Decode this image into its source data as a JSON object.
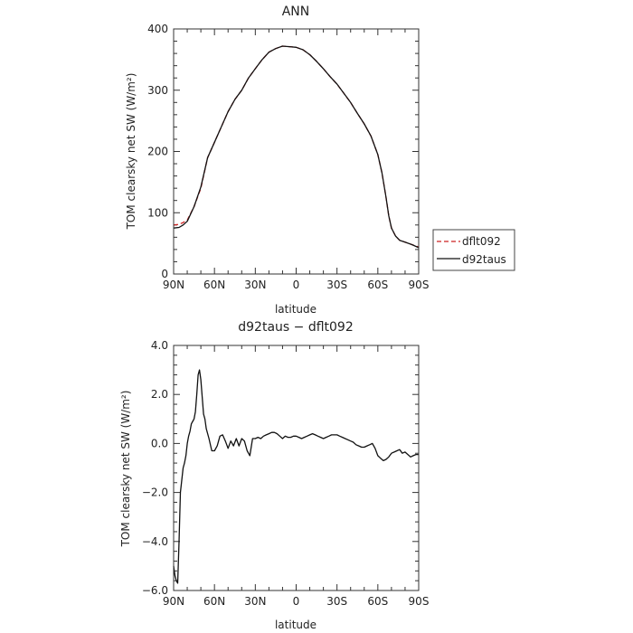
{
  "chart_data": [
    {
      "type": "line",
      "title": "ANN",
      "xlabel": "latitude",
      "ylabel": "TOM clearsky net SW (W/m²)",
      "xlim": [
        90,
        -90
      ],
      "ylim": [
        0,
        400
      ],
      "x_ticks": [
        {
          "value": 90,
          "label": "90N"
        },
        {
          "value": 60,
          "label": "60N"
        },
        {
          "value": 30,
          "label": "30N"
        },
        {
          "value": 0,
          "label": "0"
        },
        {
          "value": -30,
          "label": "30S"
        },
        {
          "value": -60,
          "label": "60S"
        },
        {
          "value": -90,
          "label": "90S"
        }
      ],
      "y_ticks": [
        {
          "value": 0,
          "label": "0"
        },
        {
          "value": 100,
          "label": "100"
        },
        {
          "value": 200,
          "label": "200"
        },
        {
          "value": 300,
          "label": "300"
        },
        {
          "value": 400,
          "label": "400"
        }
      ],
      "legend_position": "right",
      "series": [
        {
          "name": "dflt092",
          "color": "#cc2222",
          "dash": "dashed",
          "x": [
            90,
            86,
            83,
            80,
            75,
            70,
            65,
            60,
            55,
            50,
            45,
            40,
            35,
            30,
            25,
            20,
            15,
            10,
            5,
            0,
            -5,
            -10,
            -15,
            -20,
            -25,
            -30,
            -35,
            -40,
            -45,
            -50,
            -55,
            -60,
            -63,
            -66,
            -68,
            -70,
            -73,
            -76,
            -80,
            -85,
            -90
          ],
          "values": [
            80,
            81,
            84,
            88,
            110,
            140,
            190,
            215,
            240,
            265,
            285,
            300,
            320,
            335,
            350,
            362,
            368,
            372,
            371,
            370,
            366,
            358,
            347,
            335,
            322,
            310,
            295,
            280,
            262,
            245,
            225,
            195,
            165,
            125,
            95,
            75,
            62,
            55,
            52,
            48,
            44
          ]
        },
        {
          "name": "d92taus",
          "color": "#111111",
          "dash": "solid",
          "x": [
            90,
            86,
            83,
            80,
            75,
            70,
            65,
            60,
            55,
            50,
            45,
            40,
            35,
            30,
            25,
            20,
            15,
            10,
            5,
            0,
            -5,
            -10,
            -15,
            -20,
            -25,
            -30,
            -35,
            -40,
            -45,
            -50,
            -55,
            -60,
            -63,
            -66,
            -68,
            -70,
            -73,
            -76,
            -80,
            -85,
            -90
          ],
          "values": [
            75,
            76,
            80,
            86,
            110,
            142,
            190,
            215,
            240,
            265,
            285,
            300,
            320,
            335,
            350,
            362,
            368,
            372,
            371,
            370,
            366,
            358,
            347,
            335,
            322,
            310,
            295,
            280,
            262,
            245,
            225,
            195,
            165,
            125,
            95,
            75,
            62,
            55,
            52,
            48,
            43
          ]
        }
      ]
    },
    {
      "type": "line",
      "title": "d92taus − dflt092",
      "xlabel": "latitude",
      "ylabel": "TOM clearsky net SW (W/m²)",
      "xlim": [
        90,
        -90
      ],
      "ylim": [
        -6,
        4
      ],
      "x_ticks": [
        {
          "value": 90,
          "label": "90N"
        },
        {
          "value": 60,
          "label": "60N"
        },
        {
          "value": 30,
          "label": "30N"
        },
        {
          "value": 0,
          "label": "0"
        },
        {
          "value": -30,
          "label": "30S"
        },
        {
          "value": -60,
          "label": "60S"
        },
        {
          "value": -90,
          "label": "90S"
        }
      ],
      "y_ticks": [
        {
          "value": -6,
          "label": "−6.0"
        },
        {
          "value": -4,
          "label": "−4.0"
        },
        {
          "value": -2,
          "label": "−2.0"
        },
        {
          "value": 0,
          "label": "0.0"
        },
        {
          "value": 2,
          "label": "2.0"
        },
        {
          "value": 4,
          "label": "4.0"
        }
      ],
      "series": [
        {
          "color": "#111111",
          "dash": "solid",
          "x": [
            90,
            89,
            88,
            87,
            86,
            85,
            84,
            83,
            82,
            81,
            80,
            79,
            78,
            77,
            76,
            75,
            74,
            73,
            72,
            71,
            70,
            69,
            68,
            67,
            66,
            64,
            62,
            60,
            58,
            56,
            54,
            52,
            50,
            48,
            46,
            44,
            42,
            40,
            38,
            36,
            34,
            32,
            30,
            28,
            26,
            24,
            22,
            20,
            18,
            16,
            14,
            12,
            10,
            8,
            6,
            4,
            2,
            0,
            -2,
            -4,
            -6,
            -8,
            -10,
            -12,
            -14,
            -16,
            -18,
            -20,
            -22,
            -24,
            -26,
            -28,
            -30,
            -32,
            -34,
            -36,
            -38,
            -40,
            -42,
            -44,
            -46,
            -48,
            -50,
            -52,
            -54,
            -56,
            -58,
            -60,
            -62,
            -64,
            -66,
            -68,
            -70,
            -72,
            -74,
            -76,
            -78,
            -80,
            -82,
            -84,
            -86,
            -88,
            -90
          ],
          "values": [
            -5.0,
            -5.4,
            -5.6,
            -5.7,
            -4.0,
            -2.0,
            -1.5,
            -1.0,
            -0.8,
            -0.5,
            0.0,
            0.3,
            0.5,
            0.8,
            0.9,
            1.0,
            1.3,
            2.0,
            2.8,
            3.0,
            2.6,
            1.9,
            1.2,
            1.0,
            0.6,
            0.2,
            -0.3,
            -0.3,
            -0.1,
            0.3,
            0.35,
            0.1,
            -0.2,
            0.1,
            -0.1,
            0.2,
            -0.1,
            0.2,
            0.1,
            -0.3,
            -0.5,
            0.2,
            0.2,
            0.25,
            0.2,
            0.3,
            0.35,
            0.4,
            0.45,
            0.45,
            0.4,
            0.3,
            0.2,
            0.3,
            0.25,
            0.25,
            0.3,
            0.3,
            0.25,
            0.2,
            0.25,
            0.3,
            0.35,
            0.4,
            0.35,
            0.3,
            0.25,
            0.2,
            0.25,
            0.3,
            0.35,
            0.35,
            0.35,
            0.3,
            0.25,
            0.2,
            0.15,
            0.1,
            0.05,
            -0.05,
            -0.1,
            -0.15,
            -0.15,
            -0.1,
            -0.05,
            0.0,
            -0.2,
            -0.5,
            -0.6,
            -0.7,
            -0.65,
            -0.55,
            -0.4,
            -0.35,
            -0.3,
            -0.25,
            -0.4,
            -0.35,
            -0.45,
            -0.55,
            -0.5,
            -0.45,
            -0.45
          ]
        }
      ]
    }
  ]
}
